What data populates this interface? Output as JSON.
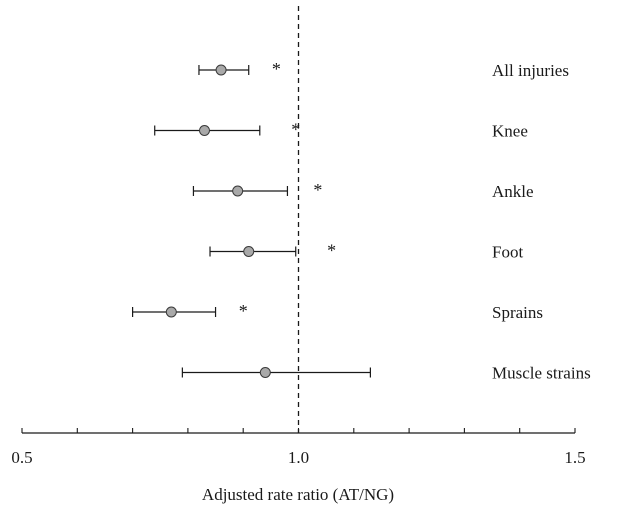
{
  "chart_data": {
    "type": "forest",
    "xlabel": "Adjusted rate ratio (AT/NG)",
    "xlim": [
      0.5,
      1.5
    ],
    "x_ticks": [
      {
        "value": 0.5,
        "label": "0.5"
      },
      {
        "value": 1.0,
        "label": "1.0"
      },
      {
        "value": 1.5,
        "label": "1.5"
      }
    ],
    "minor_tick_step": 0.1,
    "reference_line": 1.0,
    "point_color": "#a9a9a9",
    "line_color": "#1a1a1a",
    "rows": [
      {
        "label": "All injuries",
        "estimate": 0.86,
        "lower": 0.82,
        "upper": 0.91,
        "significant": true,
        "marker": "*",
        "marker_x": 0.96
      },
      {
        "label": "Knee",
        "estimate": 0.83,
        "lower": 0.74,
        "upper": 0.93,
        "significant": true,
        "marker": "*",
        "marker_x": 0.995
      },
      {
        "label": "Ankle",
        "estimate": 0.89,
        "lower": 0.81,
        "upper": 0.98,
        "significant": true,
        "marker": "*",
        "marker_x": 1.035
      },
      {
        "label": "Foot",
        "estimate": 0.91,
        "lower": 0.84,
        "upper": 0.995,
        "significant": true,
        "marker": "*",
        "marker_x": 1.06
      },
      {
        "label": "Sprains",
        "estimate": 0.77,
        "lower": 0.7,
        "upper": 0.85,
        "significant": true,
        "marker": "*",
        "marker_x": 0.9
      },
      {
        "label": "Muscle strains",
        "estimate": 0.94,
        "lower": 0.79,
        "upper": 1.13,
        "significant": false,
        "marker": "",
        "marker_x": null
      }
    ]
  }
}
